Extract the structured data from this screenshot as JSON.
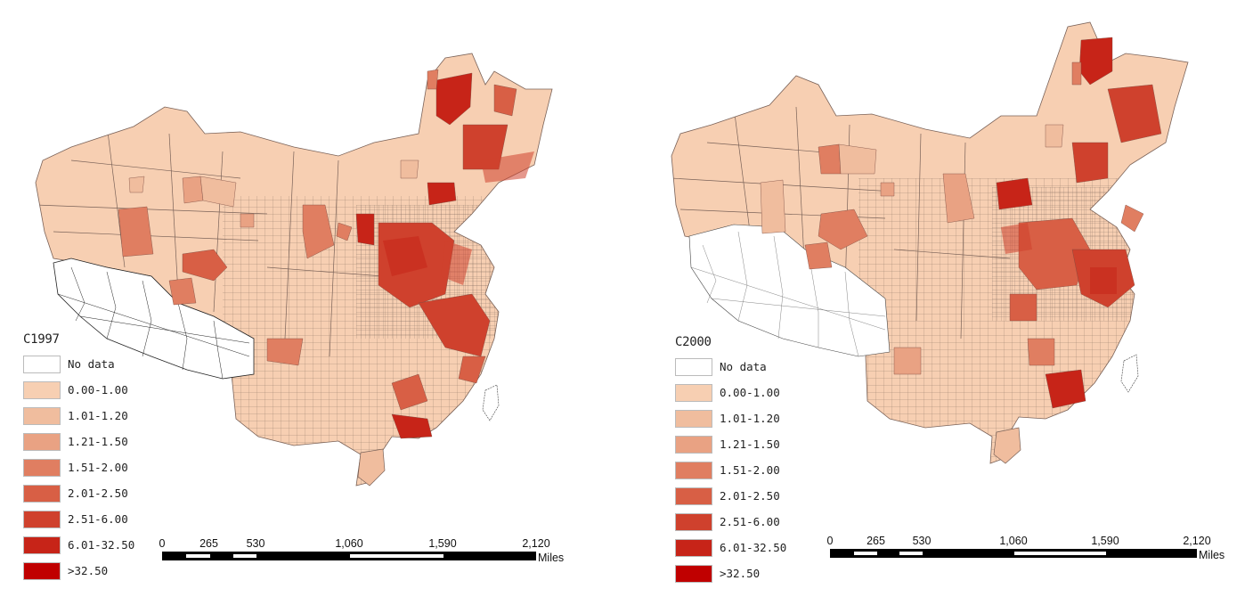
{
  "legend_colors": {
    "no_data": "#ffffff",
    "c1": "#f7cfb2",
    "c2": "#f0bd9e",
    "c3": "#e9a283",
    "c4": "#e07e61",
    "c5": "#d85f45",
    "c6": "#cf412d",
    "c7": "#c72418",
    "c8": "#c00000"
  },
  "maps": [
    {
      "title": "C1997",
      "legend": [
        {
          "label": "No data",
          "color": "#ffffff"
        },
        {
          "label": "0.00-1.00",
          "color": "#f7cfb2"
        },
        {
          "label": "1.01-1.20",
          "color": "#f0bd9e"
        },
        {
          "label": "1.21-1.50",
          "color": "#e9a283"
        },
        {
          "label": "1.51-2.00",
          "color": "#e07e61"
        },
        {
          "label": "2.01-2.50",
          "color": "#d85f45"
        },
        {
          "label": "2.51-6.00",
          "color": "#cf412d"
        },
        {
          "label": "6.01-32.50",
          "color": "#c72418"
        },
        {
          "label": ">32.50",
          "color": "#c00000"
        }
      ],
      "scale": {
        "ticks": [
          "0",
          "265",
          "530",
          "1,060",
          "1,590",
          "2,120"
        ],
        "units": "Miles"
      }
    },
    {
      "title": "C2000",
      "legend": [
        {
          "label": "No data",
          "color": "#ffffff"
        },
        {
          "label": "0.00-1.00",
          "color": "#f7cfb2"
        },
        {
          "label": "1.01-1.20",
          "color": "#f0bd9e"
        },
        {
          "label": "1.21-1.50",
          "color": "#e9a283"
        },
        {
          "label": "1.51-2.00",
          "color": "#e07e61"
        },
        {
          "label": "2.01-2.50",
          "color": "#d85f45"
        },
        {
          "label": "2.51-6.00",
          "color": "#cf412d"
        },
        {
          "label": "6.01-32.50",
          "color": "#c72418"
        },
        {
          "label": ">32.50",
          "color": "#c00000"
        }
      ],
      "scale": {
        "ticks": [
          "0",
          "265",
          "530",
          "1,060",
          "1,590",
          "2,120"
        ],
        "units": "Miles"
      }
    }
  ]
}
